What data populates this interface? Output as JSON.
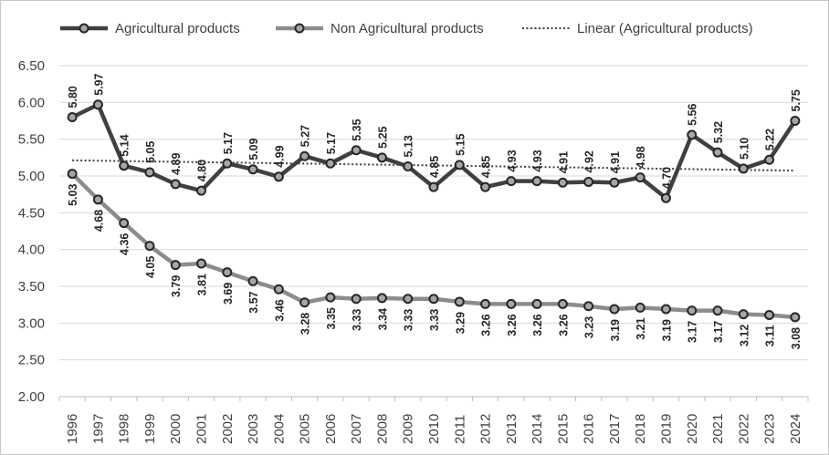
{
  "chart_data": {
    "type": "line",
    "title": "",
    "xlabel": "",
    "ylabel": "",
    "ylim": [
      2.0,
      6.5
    ],
    "ytick_step": 0.5,
    "yticks": [
      "2.00",
      "2.50",
      "3.00",
      "3.50",
      "4.00",
      "4.50",
      "5.00",
      "5.50",
      "6.00",
      "6.50"
    ],
    "grid": true,
    "legend_position": "top",
    "categories": [
      "1996",
      "1997",
      "1998",
      "1999",
      "2000",
      "2001",
      "2002",
      "2003",
      "2004",
      "2005",
      "2006",
      "2007",
      "2008",
      "2009",
      "2010",
      "2011",
      "2012",
      "2013",
      "2014",
      "2015",
      "2016",
      "2017",
      "2018",
      "2019",
      "2020",
      "2021",
      "2022",
      "2023",
      "2024"
    ],
    "series": [
      {
        "name": "Agricultural products",
        "color": "#404040",
        "values": [
          5.8,
          5.97,
          5.14,
          5.05,
          4.89,
          4.8,
          5.17,
          5.09,
          4.99,
          5.27,
          5.17,
          5.35,
          5.25,
          5.13,
          4.85,
          5.15,
          4.85,
          4.93,
          4.93,
          4.91,
          4.92,
          4.91,
          4.98,
          4.7,
          5.56,
          5.32,
          5.1,
          5.22,
          5.75
        ],
        "labels": [
          "5.80",
          "5.97",
          "5.14",
          "5.05",
          "4.89",
          "4.80",
          "5.17",
          "5.09",
          "4.99",
          "5.27",
          "5.17",
          "5.35",
          "5.25",
          "5.13",
          "4.85",
          "5.15",
          "4.85",
          "4.93",
          "4.93",
          "4.91",
          "4.92",
          "4.91",
          "4.98",
          "4.70",
          "5.56",
          "5.32",
          "5.10",
          "5.22",
          "5.75"
        ]
      },
      {
        "name": "Non Agricultural products",
        "color": "#8c8c8c",
        "values": [
          5.03,
          4.68,
          4.36,
          4.05,
          3.79,
          3.81,
          3.69,
          3.57,
          3.46,
          3.28,
          3.35,
          3.33,
          3.34,
          3.33,
          3.33,
          3.29,
          3.26,
          3.26,
          3.26,
          3.26,
          3.23,
          3.19,
          3.21,
          3.19,
          3.17,
          3.17,
          3.12,
          3.11,
          3.08
        ],
        "labels": [
          "5.03",
          "4.68",
          "4.36",
          "4.05",
          "3.79",
          "3.81",
          "3.69",
          "3.57",
          "3.46",
          "3.28",
          "3.35",
          "3.33",
          "3.34",
          "3.33",
          "3.33",
          "3.29",
          "3.26",
          "3.26",
          "3.26",
          "3.26",
          "3.23",
          "3.19",
          "3.21",
          "3.19",
          "3.17",
          "3.17",
          "3.12",
          "3.11",
          "3.08"
        ]
      }
    ],
    "trendline": {
      "name": "Linear (Agricultural products)",
      "of_series": "Agricultural products",
      "style": "dotted",
      "color": "#404040"
    }
  },
  "legend": {
    "items": [
      "Agricultural products",
      "Non Agricultural products",
      "Linear (Agricultural products)"
    ]
  }
}
